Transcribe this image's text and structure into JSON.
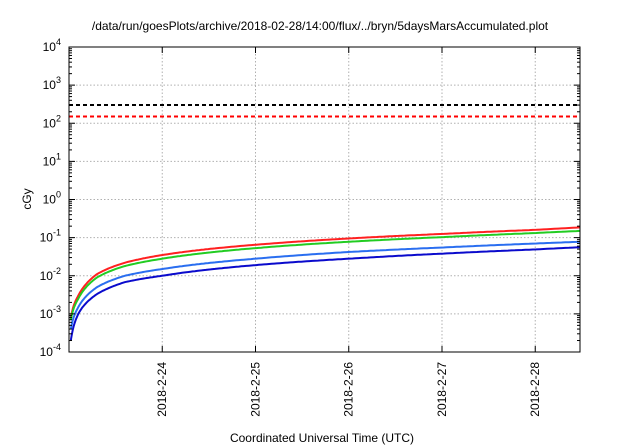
{
  "chart_data": {
    "type": "line",
    "title": "/data/run/goesPlots/archive/2018-02-28/14:00/flux/../bryn/5daysMarsAccumulated.plot",
    "xlabel": "Coordinated Universal Time (UTC)",
    "ylabel": "cGy",
    "x_ticks": [
      "2018-2-24",
      "2018-2-25",
      "2018-2-26",
      "2018-2-27",
      "2018-2-28"
    ],
    "y_ticks": [
      {
        "base": "10",
        "exp": "-4"
      },
      {
        "base": "10",
        "exp": "-3"
      },
      {
        "base": "10",
        "exp": "-2"
      },
      {
        "base": "10",
        "exp": "-1"
      },
      {
        "base": "10",
        "exp": "0"
      },
      {
        "base": "10",
        "exp": "1"
      },
      {
        "base": "10",
        "exp": "2"
      },
      {
        "base": "10",
        "exp": "3"
      },
      {
        "base": "10",
        "exp": "4"
      }
    ],
    "xlim_days": [
      0,
      5.48
    ],
    "ylim_log10": [
      -4,
      4
    ],
    "y_scale": "log",
    "grid": true,
    "thresholds": [
      {
        "value": 300,
        "color": "#000000",
        "style": "dashed"
      },
      {
        "value": 150,
        "color": "#ff0000",
        "style": "dashed"
      }
    ],
    "series": [
      {
        "color": "#ff2020",
        "x": [
          0.02,
          0.1,
          0.3,
          0.6,
          1,
          2,
          3,
          4,
          5,
          5.48
        ],
        "values": [
          0.0008,
          0.003,
          0.011,
          0.022,
          0.035,
          0.065,
          0.095,
          0.125,
          0.16,
          0.185
        ]
      },
      {
        "color": "#22cc22",
        "x": [
          0.02,
          0.1,
          0.3,
          0.6,
          1,
          2,
          3,
          4,
          5,
          5.48
        ],
        "values": [
          0.0007,
          0.0025,
          0.009,
          0.018,
          0.028,
          0.053,
          0.078,
          0.103,
          0.132,
          0.15
        ]
      },
      {
        "color": "#2a6ef0",
        "x": [
          0.02,
          0.1,
          0.3,
          0.6,
          1,
          2,
          3,
          4,
          5,
          5.48
        ],
        "values": [
          0.0004,
          0.0015,
          0.005,
          0.01,
          0.015,
          0.028,
          0.042,
          0.055,
          0.07,
          0.078
        ]
      },
      {
        "color": "#0a0acc",
        "x": [
          0.02,
          0.1,
          0.3,
          0.6,
          1,
          2,
          3,
          4,
          5,
          5.48
        ],
        "values": [
          0.0002,
          0.001,
          0.0033,
          0.0068,
          0.01,
          0.019,
          0.028,
          0.038,
          0.049,
          0.056
        ]
      }
    ]
  }
}
